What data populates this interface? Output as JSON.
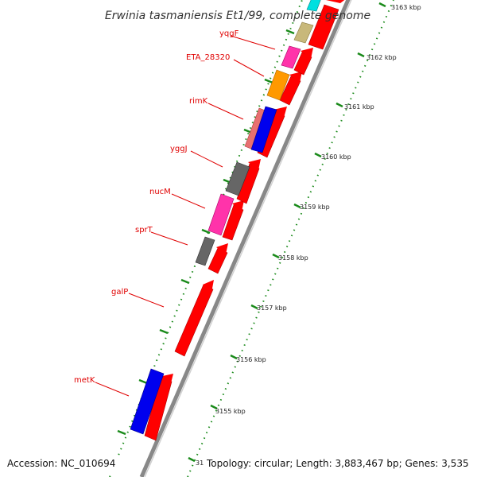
{
  "map": {
    "title": "Erwinia tasmaniensis Et1/99, complete genome",
    "accession_text": "Accession: NC_010694",
    "topology_text": "Topology: circular; Length: 3,883,467 bp; Genes: 3,535",
    "clipped_kbp_text": "31",
    "gene_labels": [
      {
        "name": "yqgF",
        "color": "#e00000"
      },
      {
        "name": "ETA_28320",
        "color": "#e00000"
      },
      {
        "name": "rimK",
        "color": "#e00000"
      },
      {
        "name": "yggJ",
        "color": "#e00000"
      },
      {
        "name": "nucM",
        "color": "#e00000"
      },
      {
        "name": "sprT",
        "color": "#e00000"
      },
      {
        "name": "galP",
        "color": "#e00000"
      },
      {
        "name": "metK",
        "color": "#e00000"
      }
    ],
    "kbp_labels": [
      "3163 kbp",
      "3162 kbp",
      "3161 kbp",
      "3160 kbp",
      "3159 kbp",
      "3158 kbp",
      "3157 kbp",
      "3156 kbp",
      "3155 kbp"
    ],
    "colors": {
      "forward_gene": "#ff0000",
      "backbone": "#8a8a8a",
      "tick": "#1a8a1a",
      "blue_gene": "#0000ee",
      "magenta_gene": "#ff33aa",
      "orange_gene": "#ff9900",
      "khaki_gene": "#c8b87a",
      "gray_gene": "#666666",
      "salmon_gene": "#e87070",
      "cyan_gene": "#00e0e0"
    }
  }
}
